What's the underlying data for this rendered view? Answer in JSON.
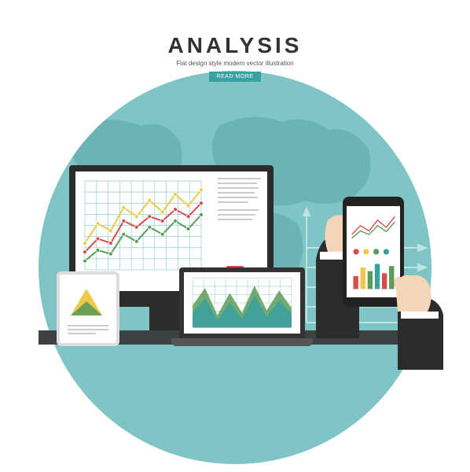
{
  "header": {
    "title": "ANALYSIS",
    "subtitle": "Flat design style modern vector illustration",
    "button_label": "READ MORE"
  },
  "colors": {
    "circle_bg": "#7fc5c6",
    "map_fill": "#6bb3b4",
    "desk": "#3c4143",
    "device_dark": "#2c2c2c",
    "accent_red": "#d94c4c",
    "accent_yellow": "#f0c94a",
    "accent_green": "#5a9c5a",
    "accent_teal": "#3aa0a0",
    "skin": "#f5d5b8",
    "sleeve": "#2c2c2c",
    "cuff": "#ffffff"
  },
  "monitor_chart": {
    "type": "line",
    "x_count": 10,
    "ylim": [
      0,
      100
    ],
    "grid_color": "#8fd0cc",
    "series": [
      {
        "color": "#f0c94a",
        "marker": "circle",
        "values": [
          30,
          52,
          44,
          70,
          60,
          78,
          65,
          85,
          72,
          90
        ]
      },
      {
        "color": "#d94c4c",
        "marker": "circle",
        "values": [
          20,
          35,
          30,
          55,
          48,
          60,
          55,
          68,
          60,
          75
        ]
      },
      {
        "color": "#5a9c5a",
        "marker": "circle",
        "values": [
          10,
          22,
          18,
          40,
          32,
          48,
          40,
          55,
          46,
          62
        ]
      }
    ]
  },
  "laptop_chart": {
    "type": "area",
    "x_count": 9,
    "ylim": [
      0,
      100
    ],
    "grid_color": "#8fd0cc",
    "series": [
      {
        "color": "#5a9c5a",
        "opacity": 0.85,
        "values": [
          45,
          80,
          25,
          70,
          30,
          85,
          35,
          75,
          40
        ]
      },
      {
        "color": "#3aa0a0",
        "opacity": 0.85,
        "values": [
          30,
          60,
          15,
          50,
          18,
          65,
          22,
          55,
          28
        ]
      }
    ]
  },
  "phone_chart": {
    "type": "mixed",
    "line_series": [
      {
        "color": "#d94c4c",
        "values": [
          20,
          45,
          30,
          60,
          40,
          70
        ]
      },
      {
        "color": "#5a9c5a",
        "values": [
          10,
          30,
          20,
          45,
          28,
          55
        ]
      }
    ],
    "dots": {
      "colors": [
        "#d94c4c",
        "#f0c94a",
        "#5a9c5a",
        "#3aa0a0"
      ],
      "y": 58
    },
    "bars": [
      {
        "color": "#d94c4c",
        "value": 18
      },
      {
        "color": "#f0c94a",
        "value": 30
      },
      {
        "color": "#5a9c5a",
        "value": 25
      },
      {
        "color": "#3aa0a0",
        "value": 35
      },
      {
        "color": "#d94c4c",
        "value": 22
      },
      {
        "color": "#5a9c5a",
        "value": 32
      }
    ]
  },
  "tablet_chart": {
    "type": "pyramid",
    "layers": [
      {
        "color": "#f0c94a"
      },
      {
        "color": "#d94c4c"
      },
      {
        "color": "#5a9c5a"
      }
    ]
  },
  "background_axes": {
    "arrow_color": "#ffffff",
    "h_arrows": 4
  }
}
